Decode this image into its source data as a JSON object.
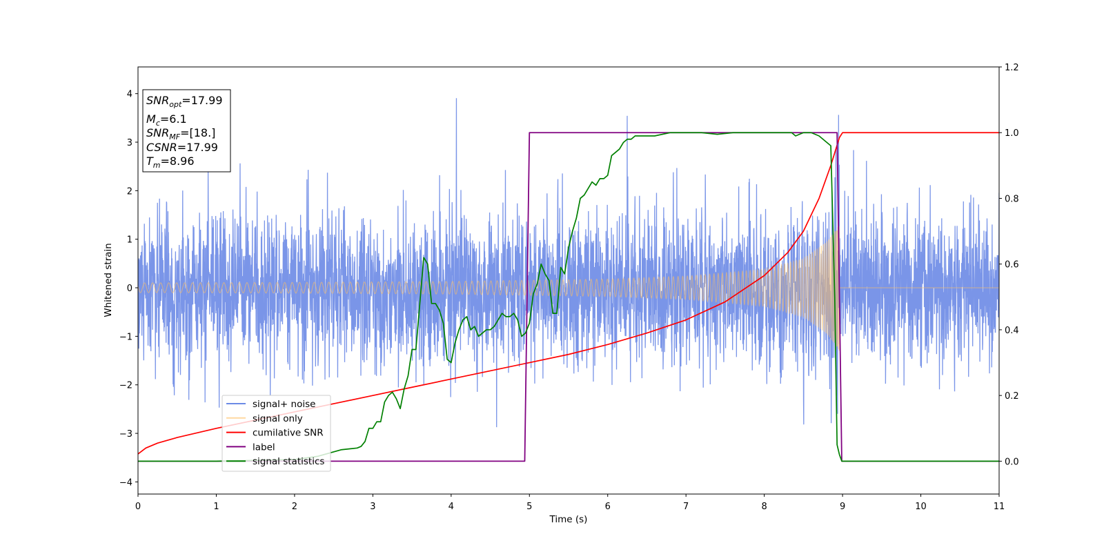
{
  "chart_data": {
    "type": "line",
    "xlabel": "Time (s)",
    "ylabel": "Whitened strain",
    "xlim": [
      0,
      11
    ],
    "ylim_left": [
      -4.25,
      4.55
    ],
    "ylim_right": [
      -0.1,
      1.2
    ],
    "x_ticks": [
      0,
      1,
      2,
      3,
      4,
      5,
      6,
      7,
      8,
      9,
      10,
      11
    ],
    "y_ticks_left": [
      -4,
      -3,
      -2,
      -1,
      0,
      1,
      2,
      3,
      4
    ],
    "y_ticks_right": [
      0.0,
      0.2,
      0.4,
      0.6,
      0.8,
      1.0,
      1.2
    ],
    "x_tick_labels": [
      "0",
      "1",
      "2",
      "3",
      "4",
      "5",
      "6",
      "7",
      "8",
      "9",
      "10",
      "11"
    ],
    "y_tick_labels_left": [
      "−4",
      "−3",
      "−2",
      "−1",
      "0",
      "1",
      "2",
      "3",
      "4"
    ],
    "y_tick_labels_right": [
      "0.0",
      "0.2",
      "0.4",
      "0.6",
      "0.8",
      "1.0",
      "1.2"
    ],
    "legend_position": "lower-left",
    "grid": false,
    "series": [
      {
        "name": "signal+ noise",
        "axis": "left",
        "color": "#6b8ae6",
        "kind": "gaussian-noise",
        "noise_std": 0.75,
        "contains_signal": true
      },
      {
        "name": "signal only",
        "axis": "left",
        "color": "#ffbf60",
        "kind": "chirp",
        "t_merger": 8.96,
        "amplitude_envelope": [
          [
            0.0,
            0.1
          ],
          [
            2.0,
            0.11
          ],
          [
            4.0,
            0.13
          ],
          [
            6.0,
            0.18
          ],
          [
            7.0,
            0.24
          ],
          [
            8.0,
            0.38
          ],
          [
            8.5,
            0.6
          ],
          [
            8.8,
            0.95
          ],
          [
            8.96,
            1.3
          ],
          [
            9.0,
            0.0
          ],
          [
            11.0,
            0.0
          ]
        ]
      },
      {
        "name": "cumilative SNR",
        "axis": "right",
        "color": "#ff0000",
        "x": [
          0.0,
          0.1,
          0.25,
          0.5,
          1.0,
          1.5,
          2.0,
          2.5,
          3.0,
          3.5,
          4.0,
          4.5,
          5.0,
          5.5,
          6.0,
          6.5,
          7.0,
          7.5,
          8.0,
          8.3,
          8.5,
          8.7,
          8.85,
          8.96,
          9.0,
          11.0
        ],
        "y": [
          0.022,
          0.04,
          0.055,
          0.072,
          0.1,
          0.125,
          0.15,
          0.175,
          0.2,
          0.225,
          0.25,
          0.275,
          0.3,
          0.325,
          0.355,
          0.39,
          0.43,
          0.485,
          0.565,
          0.635,
          0.7,
          0.8,
          0.9,
          0.985,
          1.0,
          1.0
        ]
      },
      {
        "name": "label",
        "axis": "right",
        "color": "#800080",
        "x": [
          0.0,
          4.94,
          5.0,
          8.93,
          8.99,
          11.0
        ],
        "y": [
          0.0,
          0.0,
          1.0,
          1.0,
          0.0,
          0.0
        ]
      },
      {
        "name": "signal statistics",
        "axis": "right",
        "color": "#008000",
        "x": [
          0.0,
          1.0,
          2.0,
          2.3,
          2.6,
          2.8,
          2.85,
          2.9,
          2.95,
          3.0,
          3.05,
          3.1,
          3.15,
          3.2,
          3.25,
          3.3,
          3.35,
          3.4,
          3.45,
          3.5,
          3.55,
          3.6,
          3.65,
          3.7,
          3.75,
          3.8,
          3.85,
          3.9,
          3.95,
          4.0,
          4.05,
          4.1,
          4.15,
          4.2,
          4.25,
          4.3,
          4.35,
          4.4,
          4.45,
          4.5,
          4.55,
          4.6,
          4.65,
          4.7,
          4.75,
          4.8,
          4.85,
          4.9,
          4.95,
          5.0,
          5.05,
          5.1,
          5.15,
          5.2,
          5.25,
          5.3,
          5.35,
          5.4,
          5.45,
          5.5,
          5.55,
          5.6,
          5.65,
          5.7,
          5.75,
          5.8,
          5.85,
          5.9,
          5.95,
          6.0,
          6.05,
          6.1,
          6.15,
          6.2,
          6.25,
          6.3,
          6.35,
          6.4,
          6.5,
          6.6,
          6.8,
          7.0,
          7.2,
          7.4,
          7.6,
          8.0,
          8.2,
          8.35,
          8.4,
          8.5,
          8.6,
          8.7,
          8.8,
          8.85,
          8.9,
          8.93,
          8.96,
          8.99,
          9.05,
          11.0
        ],
        "y": [
          0.0,
          0.0,
          0.005,
          0.015,
          0.035,
          0.04,
          0.045,
          0.06,
          0.1,
          0.1,
          0.12,
          0.12,
          0.18,
          0.2,
          0.21,
          0.19,
          0.16,
          0.22,
          0.26,
          0.34,
          0.34,
          0.48,
          0.62,
          0.6,
          0.48,
          0.48,
          0.46,
          0.42,
          0.31,
          0.3,
          0.36,
          0.4,
          0.43,
          0.44,
          0.4,
          0.41,
          0.38,
          0.39,
          0.4,
          0.4,
          0.41,
          0.43,
          0.45,
          0.44,
          0.44,
          0.45,
          0.43,
          0.38,
          0.39,
          0.42,
          0.51,
          0.54,
          0.6,
          0.57,
          0.55,
          0.45,
          0.45,
          0.59,
          0.57,
          0.65,
          0.7,
          0.74,
          0.8,
          0.81,
          0.83,
          0.85,
          0.84,
          0.86,
          0.86,
          0.87,
          0.93,
          0.94,
          0.95,
          0.97,
          0.98,
          0.98,
          0.99,
          0.99,
          0.99,
          0.99,
          1.0,
          1.0,
          1.0,
          0.995,
          1.0,
          1.0,
          1.0,
          1.0,
          0.99,
          1.0,
          1.0,
          0.99,
          0.97,
          0.96,
          0.5,
          0.05,
          0.02,
          0.0,
          0.0,
          0.0
        ]
      }
    ],
    "annotation": [
      {
        "base": "SNR",
        "sub": "opt",
        "value": "=17.99"
      },
      {
        "base": "M",
        "sub": "c",
        "value": "=6.1"
      },
      {
        "base": "SNR",
        "sub": "MF",
        "value": "=[18.]"
      },
      {
        "base": "CSNR",
        "sub": "",
        "value": "=17.99"
      },
      {
        "base": "T",
        "sub": "m",
        "value": "=8.96"
      }
    ]
  }
}
